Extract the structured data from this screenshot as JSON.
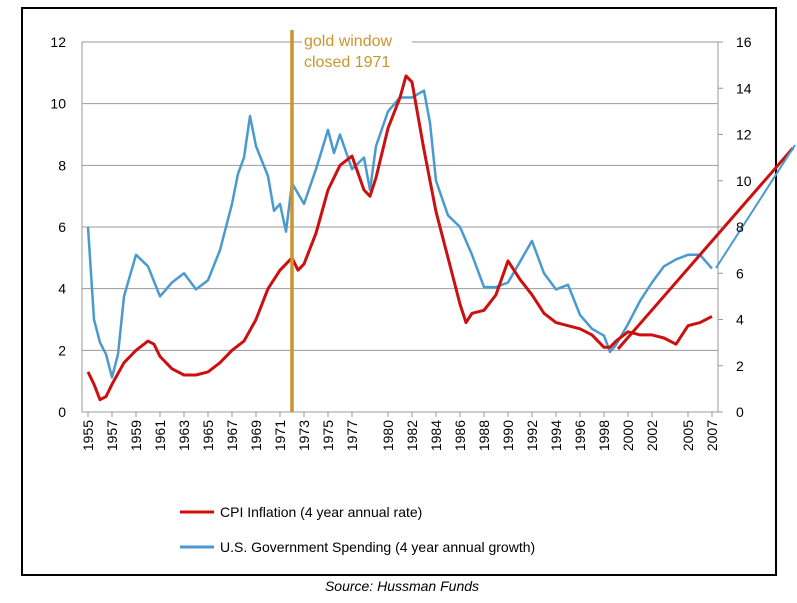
{
  "chart_data": {
    "type": "line",
    "source": "Source: Hussman Funds",
    "xlim": [
      1955,
      2007.5
    ],
    "xticks": [
      1955,
      1957,
      1959,
      1961,
      1963,
      1965,
      1967,
      1969,
      1971,
      1973,
      1975,
      1977,
      1980,
      1982,
      1984,
      1986,
      1988,
      1990,
      1992,
      1994,
      1996,
      1998,
      2000,
      2002,
      2005,
      2007
    ],
    "ylim": [
      0,
      12
    ],
    "yticks": [
      0,
      2,
      4,
      6,
      8,
      10,
      12
    ],
    "y2lim": [
      0,
      16
    ],
    "y2ticks": [
      0,
      2,
      4,
      6,
      8,
      10,
      12,
      14,
      16
    ],
    "grid": true,
    "annotations": [
      {
        "text": [
          "gold window",
          "closed 1971"
        ],
        "x": 1972,
        "color": "#c8962e"
      }
    ],
    "series": [
      {
        "name": "CPI Inflation  (4 year annual rate)",
        "color": "#cc1010",
        "x": [
          1955,
          1955.5,
          1956,
          1956.5,
          1957,
          1958,
          1959,
          1960,
          1960.5,
          1961,
          1962,
          1963,
          1964,
          1965,
          1966,
          1967,
          1968,
          1969,
          1970,
          1971,
          1972,
          1972.5,
          1973,
          1974,
          1975,
          1976,
          1977,
          1978,
          1978.5,
          1979,
          1980,
          1981,
          1981.5,
          1982,
          1983,
          1984,
          1985,
          1986,
          1986.5,
          1987,
          1988,
          1989,
          1990,
          1991,
          1992,
          1993,
          1994,
          1995,
          1996,
          1997,
          1998,
          1998.5,
          1999,
          2000,
          2001,
          2002,
          2003,
          2004,
          2005,
          2006,
          2007
        ],
        "values": [
          1.3,
          0.9,
          0.4,
          0.5,
          0.9,
          1.6,
          2.0,
          2.3,
          2.2,
          1.8,
          1.4,
          1.2,
          1.2,
          1.3,
          1.6,
          2.0,
          2.3,
          3.0,
          4.0,
          4.6,
          5.0,
          4.6,
          4.8,
          5.8,
          7.2,
          8.0,
          8.3,
          7.2,
          7.0,
          7.6,
          9.2,
          10.2,
          10.9,
          10.7,
          8.5,
          6.5,
          5.0,
          3.5,
          2.9,
          3.2,
          3.3,
          3.8,
          4.9,
          4.3,
          3.8,
          3.2,
          2.9,
          2.8,
          2.7,
          2.5,
          2.1,
          2.1,
          2.3,
          2.6,
          2.5,
          2.5,
          2.4,
          2.2,
          2.8,
          2.9,
          3.1
        ]
      },
      {
        "name": "U.S. Government Spending (4 year annual growth)",
        "color": "#4a9ad0",
        "axis": "y2",
        "x": [
          1955,
          1955.5,
          1956,
          1956.5,
          1957,
          1957.5,
          1958,
          1959,
          1960,
          1961,
          1962,
          1963,
          1964,
          1965,
          1966,
          1967,
          1967.5,
          1968,
          1968.5,
          1969,
          1970,
          1970.5,
          1971,
          1971.5,
          1972,
          1973,
          1974,
          1975,
          1975.5,
          1976,
          1977,
          1978,
          1978.5,
          1979,
          1980,
          1981,
          1982,
          1983,
          1983.5,
          1984,
          1985,
          1986,
          1987,
          1988,
          1989,
          1990,
          1991,
          1992,
          1993,
          1994,
          1995,
          1996,
          1997,
          1998,
          1998.5,
          1999,
          2000,
          2001,
          2002,
          2003,
          2004,
          2005,
          2006,
          2007
        ],
        "values": [
          8.0,
          4.0,
          3.0,
          2.5,
          1.5,
          2.5,
          5.0,
          6.8,
          6.3,
          5.0,
          5.6,
          6.0,
          5.3,
          5.7,
          7.0,
          9.0,
          10.3,
          11.0,
          12.8,
          11.5,
          10.2,
          8.7,
          9.0,
          7.8,
          9.9,
          9.0,
          10.5,
          12.2,
          11.2,
          12.0,
          10.5,
          11.0,
          9.6,
          11.5,
          13.0,
          13.6,
          13.6,
          13.9,
          12.5,
          10.0,
          8.5,
          8.0,
          6.8,
          5.4,
          5.4,
          5.6,
          6.5,
          7.4,
          6.0,
          5.3,
          5.5,
          4.2,
          3.6,
          3.3,
          2.6,
          2.9,
          3.8,
          4.8,
          5.6,
          6.3,
          6.6,
          6.8,
          6.8,
          6.2
        ]
      }
    ]
  }
}
